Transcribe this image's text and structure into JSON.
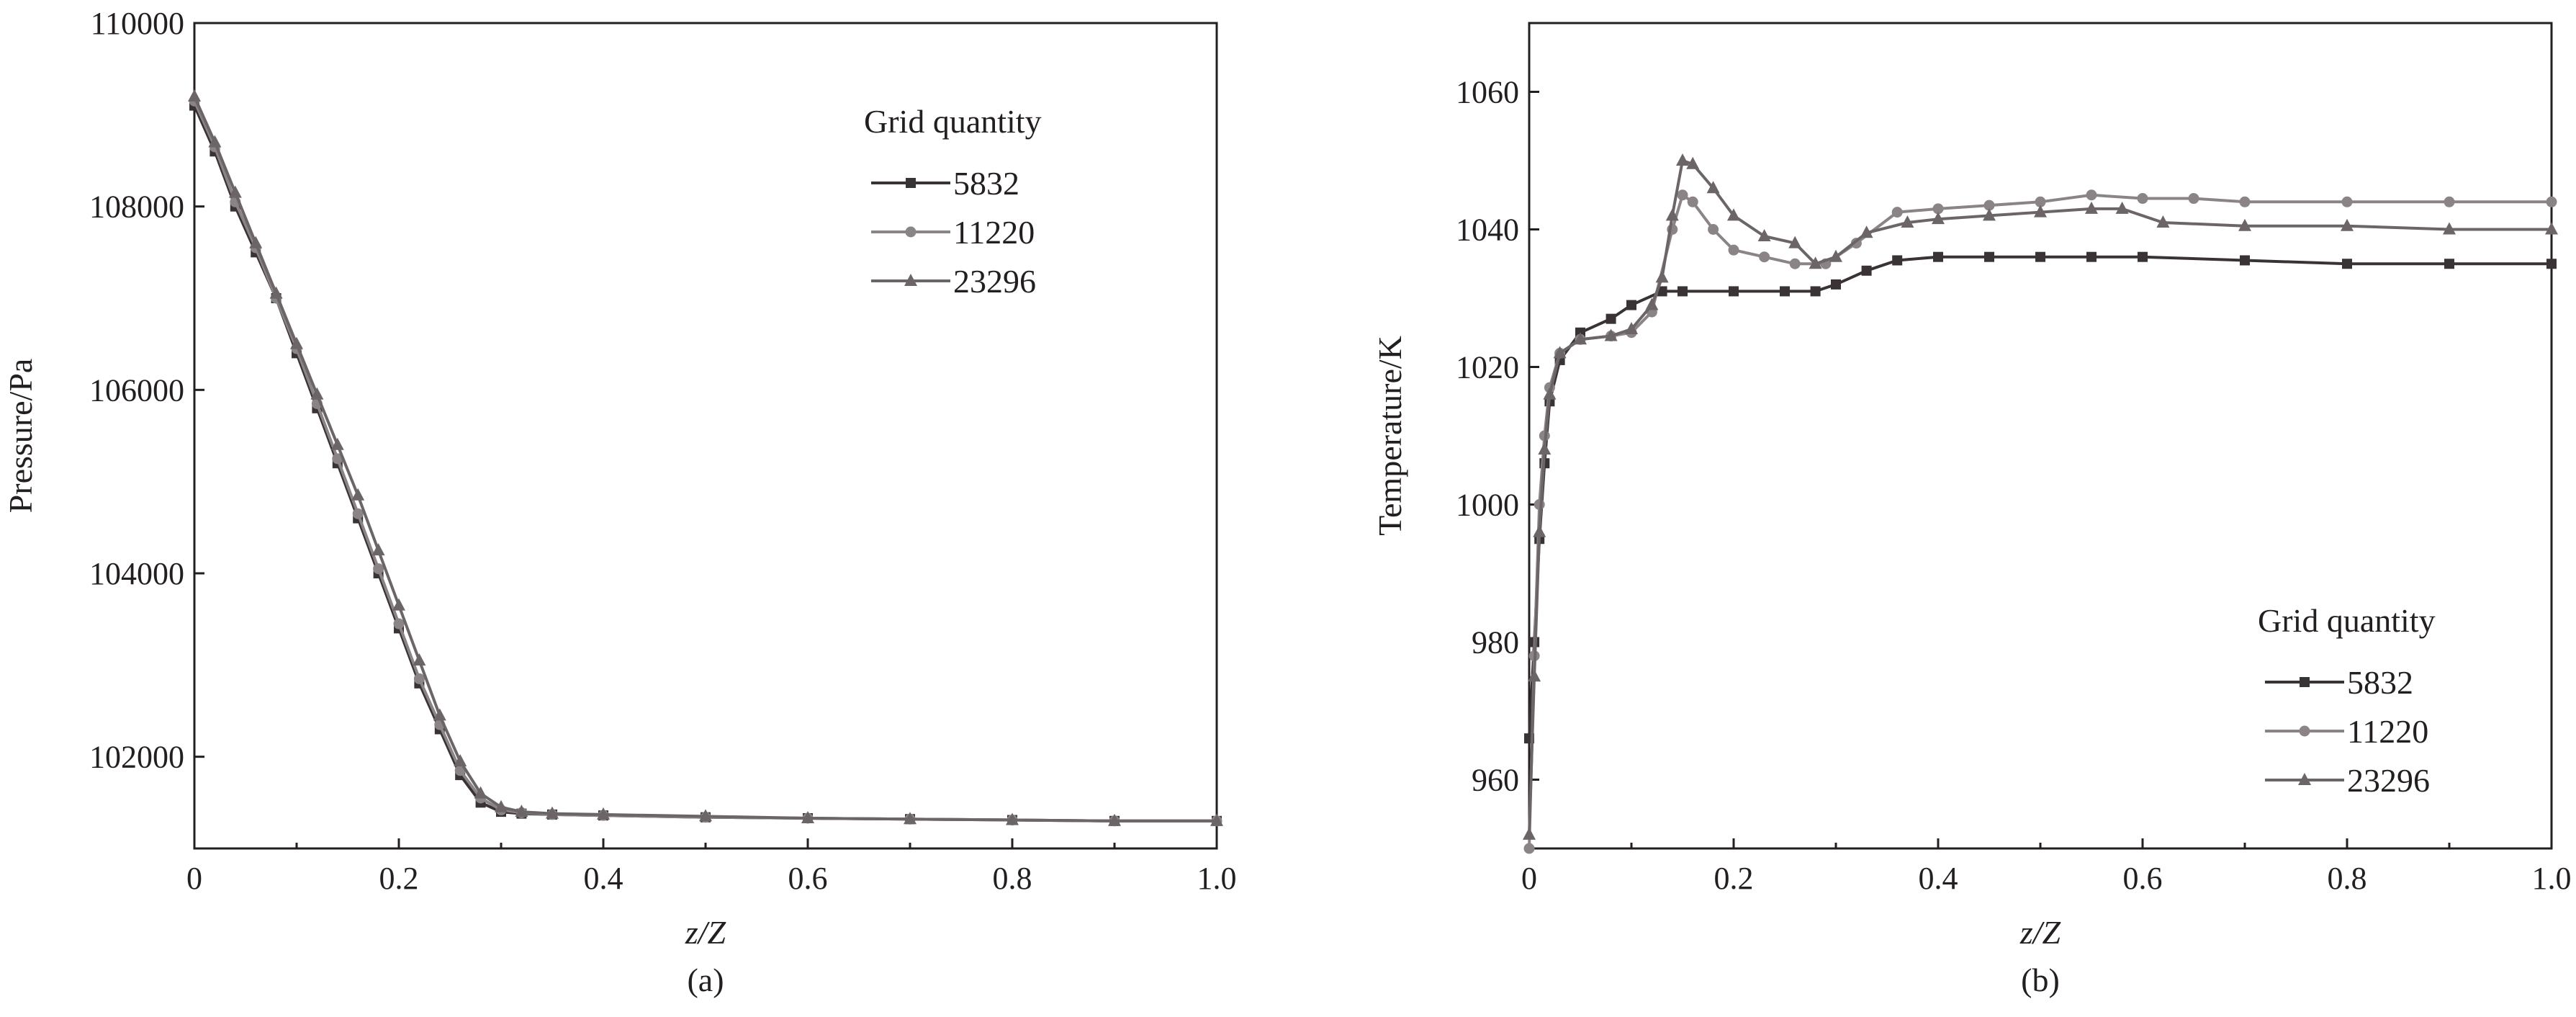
{
  "chart_data": [
    {
      "type": "line",
      "panel_label": "(a)",
      "xlabel": "z/Z",
      "ylabel": "Pressure/Pa",
      "xlim": [
        0,
        1.0
      ],
      "ylim": [
        101000,
        110000
      ],
      "xticks": [
        "0",
        "0.2",
        "0.4",
        "0.6",
        "0.8",
        "1.0"
      ],
      "yticks": [
        "102000",
        "104000",
        "106000",
        "108000",
        "110000"
      ],
      "legend_title": "Grid quantity",
      "legend_position": "top-right",
      "grid": false,
      "series": [
        {
          "name": "5832",
          "color": "#3a3335",
          "marker": "square",
          "x": [
            0,
            0.02,
            0.04,
            0.06,
            0.08,
            0.1,
            0.12,
            0.14,
            0.16,
            0.18,
            0.2,
            0.22,
            0.24,
            0.26,
            0.28,
            0.3,
            0.32,
            0.35,
            0.4,
            0.5,
            0.6,
            0.7,
            0.8,
            0.9,
            1.0
          ],
          "y": [
            109100,
            108600,
            108000,
            107500,
            107000,
            106400,
            105800,
            105200,
            104600,
            104000,
            103400,
            102800,
            102300,
            101800,
            101500,
            101400,
            101380,
            101370,
            101360,
            101340,
            101330,
            101320,
            101310,
            101300,
            101300
          ]
        },
        {
          "name": "11220",
          "color": "#8a8486",
          "marker": "circle",
          "x": [
            0,
            0.02,
            0.04,
            0.06,
            0.08,
            0.1,
            0.12,
            0.14,
            0.16,
            0.18,
            0.2,
            0.22,
            0.24,
            0.26,
            0.28,
            0.3,
            0.32,
            0.35,
            0.4,
            0.5,
            0.6,
            0.7,
            0.8,
            0.9,
            1.0
          ],
          "y": [
            109150,
            108650,
            108050,
            107550,
            107000,
            106450,
            105850,
            105250,
            104650,
            104050,
            103450,
            102850,
            102350,
            101850,
            101550,
            101420,
            101390,
            101370,
            101360,
            101340,
            101330,
            101320,
            101310,
            101300,
            101300
          ]
        },
        {
          "name": "23296",
          "color": "#6c6567",
          "marker": "triangle",
          "x": [
            0,
            0.02,
            0.04,
            0.06,
            0.08,
            0.1,
            0.12,
            0.14,
            0.16,
            0.18,
            0.2,
            0.22,
            0.24,
            0.26,
            0.28,
            0.3,
            0.32,
            0.35,
            0.4,
            0.5,
            0.6,
            0.7,
            0.8,
            0.9,
            1.0
          ],
          "y": [
            109200,
            108700,
            108150,
            107600,
            107050,
            106500,
            105950,
            105400,
            104850,
            104250,
            103650,
            103050,
            102450,
            101950,
            101600,
            101450,
            101400,
            101380,
            101370,
            101350,
            101330,
            101320,
            101310,
            101300,
            101300
          ]
        }
      ]
    },
    {
      "type": "line",
      "panel_label": "(b)",
      "xlabel": "z/Z",
      "ylabel": "Temperature/K",
      "xlim": [
        0,
        1.0
      ],
      "ylim": [
        950,
        1070
      ],
      "xticks": [
        "0",
        "0.2",
        "0.4",
        "0.6",
        "0.8",
        "1.0"
      ],
      "yticks": [
        "960",
        "980",
        "1000",
        "1020",
        "1040",
        "1060"
      ],
      "legend_title": "Grid quantity",
      "legend_position": "bottom-right",
      "grid": false,
      "series": [
        {
          "name": "5832",
          "color": "#3a3335",
          "marker": "square",
          "x": [
            0,
            0.005,
            0.01,
            0.015,
            0.02,
            0.03,
            0.05,
            0.08,
            0.1,
            0.13,
            0.15,
            0.2,
            0.25,
            0.28,
            0.3,
            0.33,
            0.36,
            0.4,
            0.45,
            0.5,
            0.55,
            0.6,
            0.7,
            0.8,
            0.9,
            1.0
          ],
          "y": [
            966,
            980,
            995,
            1006,
            1015,
            1021,
            1025,
            1027,
            1029,
            1031,
            1031,
            1031,
            1031,
            1031,
            1032,
            1034,
            1035.5,
            1036,
            1036,
            1036,
            1036,
            1036,
            1035.5,
            1035,
            1035,
            1035
          ]
        },
        {
          "name": "11220",
          "color": "#8a8486",
          "marker": "circle",
          "x": [
            0,
            0.005,
            0.01,
            0.015,
            0.02,
            0.03,
            0.05,
            0.08,
            0.1,
            0.12,
            0.14,
            0.15,
            0.16,
            0.18,
            0.2,
            0.23,
            0.26,
            0.29,
            0.32,
            0.36,
            0.4,
            0.45,
            0.5,
            0.55,
            0.6,
            0.65,
            0.7,
            0.8,
            0.9,
            1.0
          ],
          "y": [
            950,
            978,
            1000,
            1010,
            1017,
            1022,
            1024,
            1024.5,
            1025,
            1028,
            1040,
            1045,
            1044,
            1040,
            1037,
            1036,
            1035,
            1035,
            1038,
            1042.5,
            1043,
            1043.5,
            1044,
            1045,
            1044.5,
            1044.5,
            1044,
            1044,
            1044,
            1044
          ]
        },
        {
          "name": "23296",
          "color": "#6c6567",
          "marker": "triangle",
          "x": [
            0,
            0.005,
            0.01,
            0.015,
            0.02,
            0.03,
            0.05,
            0.08,
            0.1,
            0.12,
            0.13,
            0.14,
            0.15,
            0.16,
            0.18,
            0.2,
            0.23,
            0.26,
            0.28,
            0.3,
            0.33,
            0.37,
            0.4,
            0.45,
            0.5,
            0.55,
            0.58,
            0.62,
            0.7,
            0.8,
            0.9,
            1.0
          ],
          "y": [
            952,
            975,
            996,
            1008,
            1016,
            1022,
            1024,
            1024.5,
            1025.5,
            1029,
            1033,
            1042,
            1050,
            1049.5,
            1046,
            1042,
            1039,
            1038,
            1035,
            1036,
            1039.5,
            1041,
            1041.5,
            1042,
            1042.5,
            1043,
            1043,
            1041,
            1040.5,
            1040.5,
            1040,
            1040
          ]
        }
      ]
    }
  ]
}
